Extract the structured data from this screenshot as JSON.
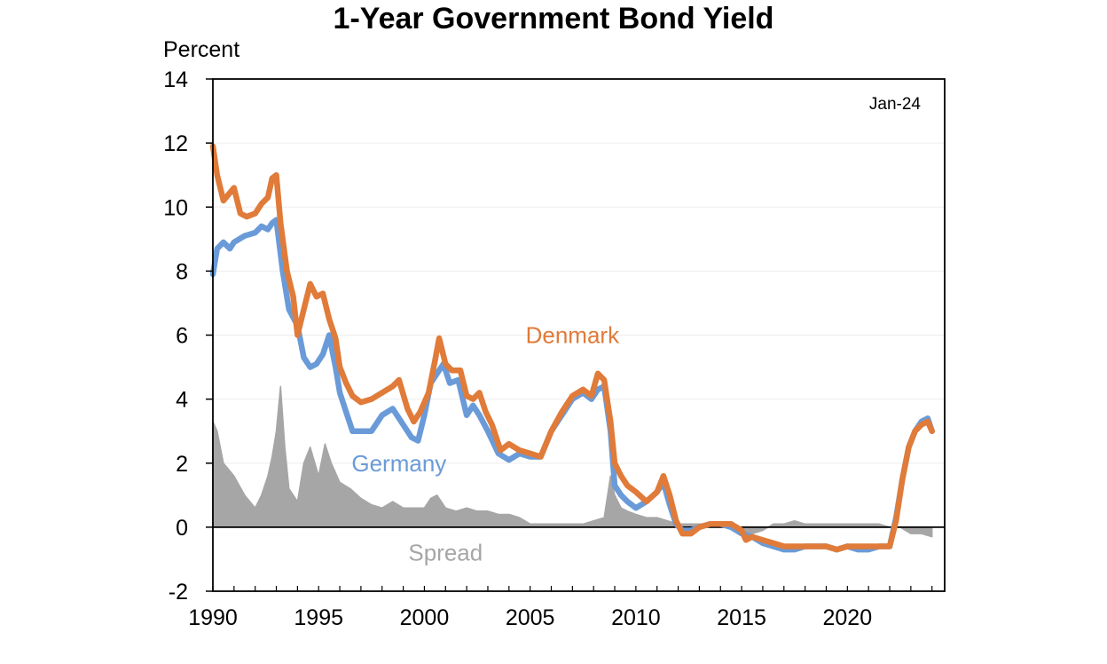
{
  "chart_data": {
    "type": "line",
    "title": "1-Year Government Bond Yield",
    "ylabel": "Percent",
    "xlabel": "",
    "date_note": "Jan-24",
    "ylim": [
      -2,
      14
    ],
    "xlim": [
      1990,
      2024.6
    ],
    "yticks": [
      -2,
      0,
      2,
      4,
      6,
      8,
      10,
      12,
      14
    ],
    "xticks": [
      1990,
      1995,
      2000,
      2005,
      2010,
      2015,
      2020
    ],
    "grid": "horizontal",
    "colors": {
      "Denmark": "#E07B39",
      "Germany": "#6A9BD8",
      "Spread": "#A6A6A6"
    },
    "series": [
      {
        "name": "Denmark",
        "type": "line",
        "x": [
          1990.0,
          1990.2,
          1990.5,
          1991.0,
          1991.3,
          1991.6,
          1992.0,
          1992.3,
          1992.6,
          1992.8,
          1993.0,
          1993.2,
          1993.5,
          1993.8,
          1994.0,
          1994.3,
          1994.6,
          1994.9,
          1995.2,
          1995.5,
          1995.8,
          1996.0,
          1996.3,
          1996.6,
          1997.0,
          1997.5,
          1998.0,
          1998.5,
          1998.8,
          1999.2,
          1999.5,
          1999.8,
          2000.2,
          2000.5,
          2000.7,
          2001.0,
          2001.3,
          2001.7,
          2002.0,
          2002.3,
          2002.6,
          2002.9,
          2003.2,
          2003.6,
          2004.0,
          2004.5,
          2005.0,
          2005.5,
          2006.0,
          2006.5,
          2007.0,
          2007.5,
          2007.9,
          2008.2,
          2008.5,
          2008.8,
          2009.0,
          2009.3,
          2009.6,
          2010.0,
          2010.5,
          2011.0,
          2011.3,
          2011.6,
          2011.9,
          2012.2,
          2012.6,
          2013.0,
          2013.5,
          2014.0,
          2014.5,
          2015.0,
          2015.2,
          2015.5,
          2016.0,
          2016.5,
          2017.0,
          2017.5,
          2018.0,
          2018.5,
          2019.0,
          2019.5,
          2020.0,
          2020.5,
          2021.0,
          2021.5,
          2022.0,
          2022.3,
          2022.6,
          2022.9,
          2023.2,
          2023.5,
          2023.8,
          2024.0
        ],
        "values": [
          11.9,
          11.0,
          10.2,
          10.6,
          9.8,
          9.7,
          9.8,
          10.1,
          10.3,
          10.9,
          11.0,
          9.5,
          8.0,
          7.2,
          6.0,
          6.8,
          7.6,
          7.2,
          7.3,
          6.5,
          5.9,
          5.0,
          4.5,
          4.1,
          3.9,
          4.0,
          4.2,
          4.4,
          4.6,
          3.7,
          3.3,
          3.6,
          4.2,
          5.2,
          5.9,
          5.1,
          4.9,
          4.9,
          4.1,
          4.0,
          4.2,
          3.6,
          3.2,
          2.4,
          2.6,
          2.4,
          2.3,
          2.2,
          3.0,
          3.6,
          4.1,
          4.3,
          4.1,
          4.8,
          4.6,
          3.3,
          2.0,
          1.6,
          1.3,
          1.1,
          0.8,
          1.1,
          1.6,
          1.0,
          0.2,
          -0.2,
          -0.2,
          0.0,
          0.1,
          0.1,
          0.1,
          -0.1,
          -0.4,
          -0.3,
          -0.4,
          -0.5,
          -0.6,
          -0.6,
          -0.6,
          -0.6,
          -0.6,
          -0.7,
          -0.6,
          -0.6,
          -0.6,
          -0.6,
          -0.6,
          0.2,
          1.5,
          2.5,
          3.0,
          3.2,
          3.3,
          3.0
        ]
      },
      {
        "name": "Germany",
        "type": "line",
        "x": [
          1990.0,
          1990.2,
          1990.5,
          1990.8,
          1991.0,
          1991.5,
          1992.0,
          1992.3,
          1992.6,
          1992.8,
          1993.0,
          1993.3,
          1993.6,
          1994.0,
          1994.3,
          1994.6,
          1994.9,
          1995.2,
          1995.5,
          1995.8,
          1996.0,
          1996.3,
          1996.6,
          1997.0,
          1997.5,
          1998.0,
          1998.5,
          1999.0,
          1999.4,
          1999.7,
          2000.0,
          2000.3,
          2000.6,
          2000.9,
          2001.2,
          2001.6,
          2002.0,
          2002.3,
          2002.6,
          2003.0,
          2003.5,
          2004.0,
          2004.5,
          2005.0,
          2005.5,
          2006.0,
          2006.5,
          2007.0,
          2007.5,
          2007.9,
          2008.2,
          2008.5,
          2008.8,
          2009.0,
          2009.3,
          2009.6,
          2010.0,
          2010.5,
          2011.0,
          2011.3,
          2011.6,
          2011.9,
          2012.2,
          2012.6,
          2013.0,
          2013.5,
          2014.0,
          2014.5,
          2015.0,
          2015.5,
          2016.0,
          2016.5,
          2017.0,
          2017.5,
          2018.0,
          2018.5,
          2019.0,
          2019.5,
          2020.0,
          2020.5,
          2021.0,
          2021.5,
          2022.0,
          2022.3,
          2022.6,
          2022.9,
          2023.2,
          2023.5,
          2023.8,
          2024.0
        ],
        "values": [
          7.9,
          8.7,
          8.9,
          8.7,
          8.9,
          9.1,
          9.2,
          9.4,
          9.3,
          9.5,
          9.6,
          8.0,
          6.8,
          6.3,
          5.3,
          5.0,
          5.1,
          5.4,
          6.0,
          5.0,
          4.2,
          3.6,
          3.0,
          3.0,
          3.0,
          3.5,
          3.7,
          3.2,
          2.8,
          2.7,
          3.5,
          4.5,
          4.8,
          5.1,
          4.5,
          4.6,
          3.5,
          3.8,
          3.5,
          3.0,
          2.3,
          2.1,
          2.3,
          2.2,
          2.2,
          3.0,
          3.5,
          4.0,
          4.2,
          4.0,
          4.3,
          4.4,
          3.0,
          1.3,
          1.0,
          0.8,
          0.6,
          0.8,
          1.1,
          1.4,
          0.7,
          0.1,
          -0.1,
          -0.1,
          0.0,
          0.1,
          0.1,
          0.0,
          -0.2,
          -0.3,
          -0.5,
          -0.6,
          -0.7,
          -0.7,
          -0.6,
          -0.6,
          -0.6,
          -0.7,
          -0.6,
          -0.7,
          -0.7,
          -0.6,
          -0.6,
          0.3,
          1.5,
          2.5,
          3.0,
          3.3,
          3.4,
          3.0
        ]
      },
      {
        "name": "Spread",
        "type": "bar",
        "x": [
          1990.0,
          1990.2,
          1990.5,
          1991.0,
          1991.5,
          1992.0,
          1992.3,
          1992.6,
          1992.8,
          1993.0,
          1993.2,
          1993.4,
          1993.6,
          1994.0,
          1994.3,
          1994.6,
          1995.0,
          1995.3,
          1995.6,
          1996.0,
          1996.5,
          1997.0,
          1997.5,
          1998.0,
          1998.5,
          1999.0,
          1999.5,
          2000.0,
          2000.3,
          2000.6,
          2001.0,
          2001.5,
          2002.0,
          2002.5,
          2003.0,
          2003.5,
          2004.0,
          2004.5,
          2005.0,
          2005.5,
          2006.0,
          2006.5,
          2007.0,
          2007.5,
          2008.0,
          2008.5,
          2008.8,
          2009.0,
          2009.3,
          2009.6,
          2010.0,
          2010.5,
          2011.0,
          2011.5,
          2012.0,
          2012.5,
          2013.0,
          2013.5,
          2014.0,
          2014.5,
          2015.0,
          2015.5,
          2016.0,
          2016.5,
          2017.0,
          2017.5,
          2018.0,
          2018.5,
          2019.0,
          2019.5,
          2020.0,
          2020.5,
          2021.0,
          2021.5,
          2022.0,
          2022.5,
          2023.0,
          2023.5,
          2024.0
        ],
        "values": [
          3.3,
          3.0,
          2.0,
          1.6,
          1.0,
          0.6,
          1.0,
          1.6,
          2.2,
          3.0,
          4.4,
          2.5,
          1.2,
          0.8,
          2.0,
          2.5,
          1.6,
          2.6,
          2.0,
          1.4,
          1.2,
          0.9,
          0.7,
          0.6,
          0.8,
          0.6,
          0.6,
          0.6,
          0.9,
          1.0,
          0.6,
          0.5,
          0.6,
          0.5,
          0.5,
          0.4,
          0.4,
          0.3,
          0.1,
          0.1,
          0.1,
          0.1,
          0.1,
          0.1,
          0.2,
          0.3,
          1.6,
          1.0,
          0.6,
          0.5,
          0.4,
          0.3,
          0.3,
          0.2,
          0.1,
          0.1,
          0.1,
          0.1,
          0.1,
          0.1,
          -0.1,
          -0.2,
          -0.1,
          0.1,
          0.1,
          0.2,
          0.1,
          0.1,
          0.1,
          0.1,
          0.1,
          0.1,
          0.1,
          0.1,
          0.0,
          0.0,
          -0.2,
          -0.2,
          -0.3
        ]
      }
    ],
    "annotations": [
      {
        "text": "Denmark",
        "x": 2007.0,
        "y": 6.0,
        "color": "#E07B39"
      },
      {
        "text": "Germany",
        "x": 1998.8,
        "y": 2.0,
        "color": "#6A9BD8"
      },
      {
        "text": "Spread",
        "x": 2001.0,
        "y": -0.8,
        "color": "#A6A6A6"
      }
    ]
  }
}
